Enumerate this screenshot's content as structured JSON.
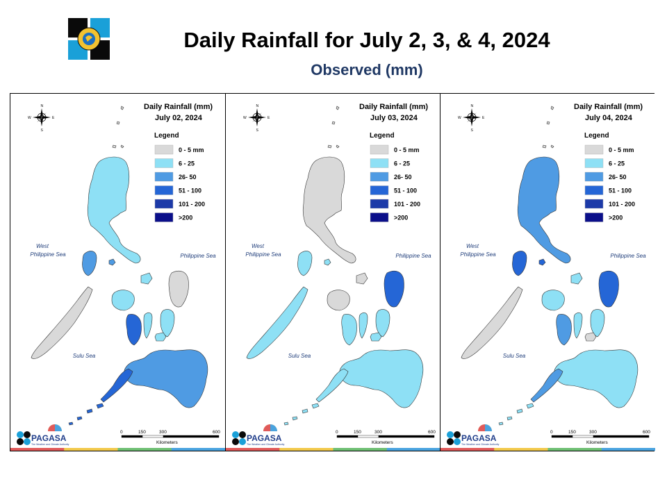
{
  "title": "Daily Rainfall for July 2, 3, & 4, 2024",
  "subtitle": "Observed (mm)",
  "common": {
    "legend_title": "Legend",
    "legend_items": [
      {
        "label": "0 - 5 mm",
        "color": "#d9d9d9"
      },
      {
        "label": "6 - 25",
        "color": "#8ee0f5"
      },
      {
        "label": "26- 50",
        "color": "#4f9be3"
      },
      {
        "label": "51 - 100",
        "color": "#2566d6"
      },
      {
        "label": "101 - 200",
        "color": "#1c3aa8"
      },
      {
        "label": ">200",
        "color": "#0b0f8a"
      }
    ],
    "sea_west_1": "West",
    "sea_west_2": "Philippine Sea",
    "sea_east": "Philippine Sea",
    "sea_south": "Sulu Sea",
    "scale_ticks": [
      "0",
      "150",
      "300",
      "600"
    ],
    "scale_unit": "Kilometers",
    "compass": {
      "n": "N",
      "s": "S",
      "e": "E",
      "w": "W"
    },
    "pagasa_name": "PAGASA",
    "pagasa_tagline": "The Weather and Climate Authority"
  },
  "panels": [
    {
      "map_title_1": "Daily Rainfall (mm)",
      "map_title_2": "July 02, 2024"
    },
    {
      "map_title_1": "Daily Rainfall (mm)",
      "map_title_2": "July 03, 2024"
    },
    {
      "map_title_1": "Daily Rainfall (mm)",
      "map_title_2": "July 04, 2024"
    }
  ],
  "footer_stripe_colors": [
    "#e05a5a",
    "#f2c94c",
    "#6fbf73",
    "#4aa3df"
  ]
}
